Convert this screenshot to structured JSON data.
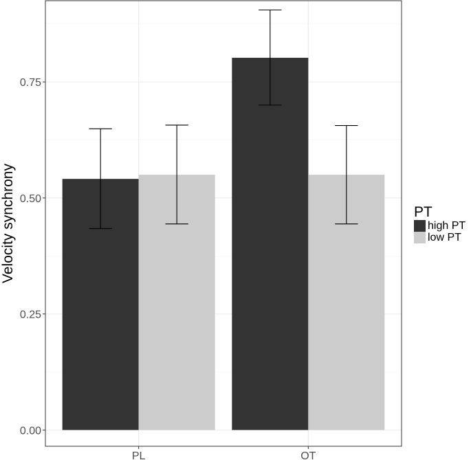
{
  "chart_data": {
    "type": "bar",
    "categories": [
      "PL",
      "OT"
    ],
    "series": [
      {
        "name": "high PT",
        "color": "#333333",
        "values": [
          0.541,
          0.802
        ],
        "error_low": [
          0.434,
          0.7
        ],
        "error_high": [
          0.649,
          0.905
        ]
      },
      {
        "name": "low PT",
        "color": "#cccccc",
        "values": [
          0.55,
          0.55
        ],
        "error_low": [
          0.444,
          0.444
        ],
        "error_high": [
          0.657,
          0.656
        ]
      }
    ],
    "ylabel": "Velocity synchrony",
    "xlabel": "",
    "yticks": [
      "0.00",
      "0.25",
      "0.50",
      "0.75"
    ],
    "ylim": [
      -0.035,
      0.925
    ],
    "legend": {
      "title": "PT",
      "position": "right"
    },
    "grid": true
  }
}
